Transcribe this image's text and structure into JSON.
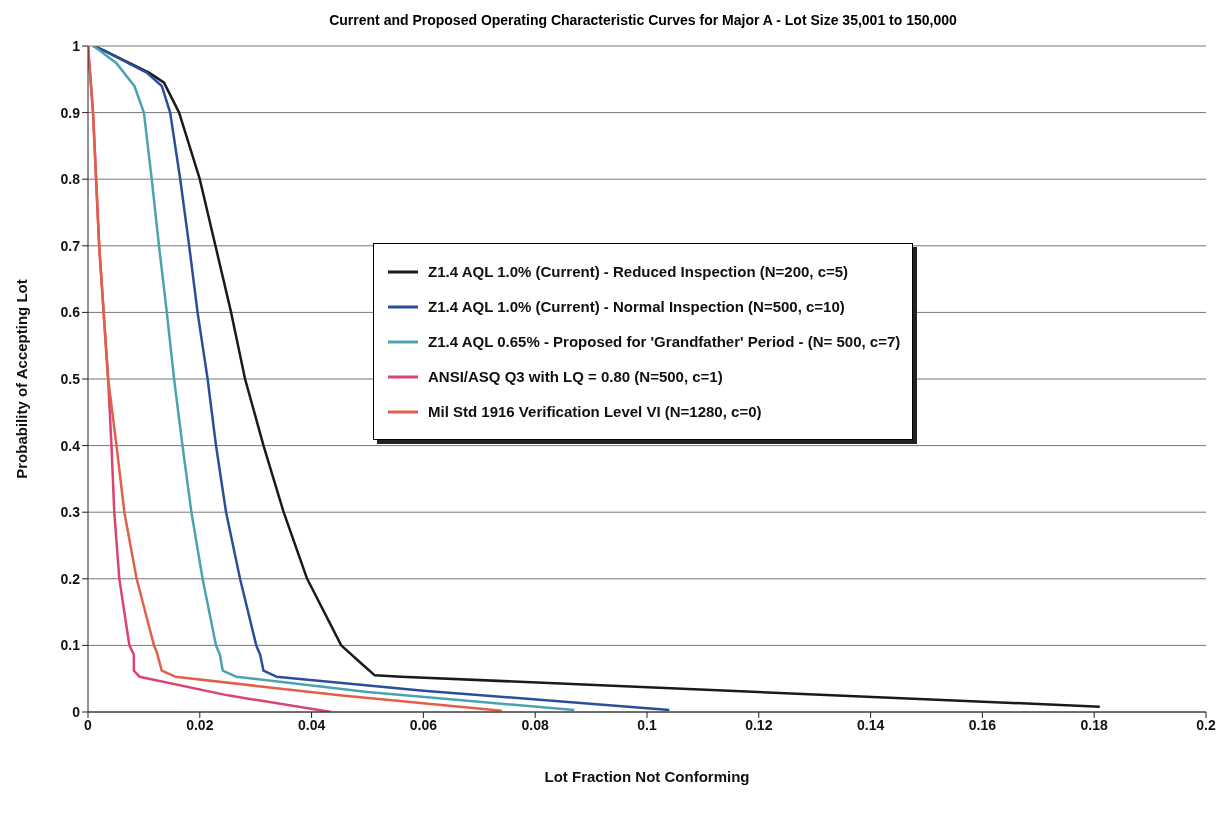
{
  "chart_data": {
    "type": "line",
    "title": "Current and Proposed Operating Characteristic Curves for Major A - Lot Size 35,001 to 150,000",
    "xlabel": "Lot  Fraction Not Conforming",
    "ylabel": "Probability of Accepting Lot",
    "xlim": [
      0,
      0.2
    ],
    "xticks": [
      0,
      0.02,
      0.04,
      0.06,
      0.08,
      0.1,
      0.12,
      0.14,
      0.16,
      0.18,
      0.2
    ],
    "ylim": [
      0,
      1
    ],
    "yticks": [
      0,
      0.1,
      0.2,
      0.3,
      0.4,
      0.5,
      0.6,
      0.7,
      0.8,
      0.9,
      1
    ],
    "grid": "y",
    "legend": "right",
    "marker": "none",
    "line_style": "solid",
    "series": [
      {
        "name": "Z1.4 AQL 1.0% (Current) - Reduced Inspection (N=200, c=5)",
        "color": "#1a1a1a",
        "x": [
          0.001,
          0.0029,
          0.0109,
          0.0136,
          0.0163,
          0.02,
          0.0228,
          0.0256,
          0.0281,
          0.0314,
          0.035,
          0.0392,
          0.0453,
          0.049,
          0.0513,
          0.056,
          0.181
        ],
        "values": [
          1,
          0.993,
          0.96,
          0.945,
          0.9,
          0.8,
          0.7,
          0.6,
          0.5,
          0.4,
          0.3,
          0.2,
          0.1,
          0.072,
          0.055,
          0.053,
          0.008
        ]
      },
      {
        "name": "Z1.4 AQL 1.0% (Current) - Normal Inspection (N=500, c=10)",
        "color": "#2a4f9a",
        "x": [
          0.001,
          0.0029,
          0.0105,
          0.0132,
          0.0147,
          0.0165,
          0.0181,
          0.0196,
          0.0214,
          0.0229,
          0.0247,
          0.0272,
          0.0301,
          0.0308,
          0.0314,
          0.0337,
          0.06,
          0.104
        ],
        "values": [
          1,
          0.993,
          0.96,
          0.94,
          0.9,
          0.8,
          0.7,
          0.6,
          0.5,
          0.4,
          0.3,
          0.2,
          0.1,
          0.086,
          0.062,
          0.053,
          0.032,
          0.003
        ]
      },
      {
        "name": "Z1.4 AQL 0.65% - Proposed for 'Grandfather' Period - (N= 500, c=7)",
        "color": "#4aa3b0",
        "x": [
          0.001,
          0.005,
          0.0083,
          0.01,
          0.0114,
          0.0127,
          0.0141,
          0.0154,
          0.0169,
          0.0185,
          0.0205,
          0.0229,
          0.0236,
          0.0241,
          0.0265,
          0.05,
          0.087
        ],
        "values": [
          1,
          0.975,
          0.94,
          0.9,
          0.8,
          0.7,
          0.6,
          0.5,
          0.4,
          0.3,
          0.2,
          0.1,
          0.086,
          0.062,
          0.053,
          0.03,
          0.003
        ]
      },
      {
        "name": "ANSI/ASQ Q3 with LQ = 0.80 (N=500, c=1)",
        "color": "#d9456e",
        "x": [
          0,
          0.0009,
          0.002,
          0.0036,
          0.0042,
          0.0047,
          0.0056,
          0.0074,
          0.0082,
          0.0082,
          0.0092,
          0.025,
          0.0435
        ],
        "values": [
          1,
          0.9,
          0.7,
          0.5,
          0.4,
          0.3,
          0.2,
          0.1,
          0.086,
          0.062,
          0.053,
          0.025,
          0
        ]
      },
      {
        "name": "Mil Std 1916 Verification Level VI (N=1280, c=0)",
        "color": "#e0604a",
        "x": [
          0,
          0.0009,
          0.002,
          0.0036,
          0.0051,
          0.0065,
          0.0087,
          0.0118,
          0.0123,
          0.0132,
          0.0156,
          0.045,
          0.074
        ],
        "values": [
          1,
          0.9,
          0.7,
          0.5,
          0.4,
          0.3,
          0.2,
          0.1,
          0.09,
          0.062,
          0.053,
          0.025,
          0.002
        ]
      }
    ]
  }
}
